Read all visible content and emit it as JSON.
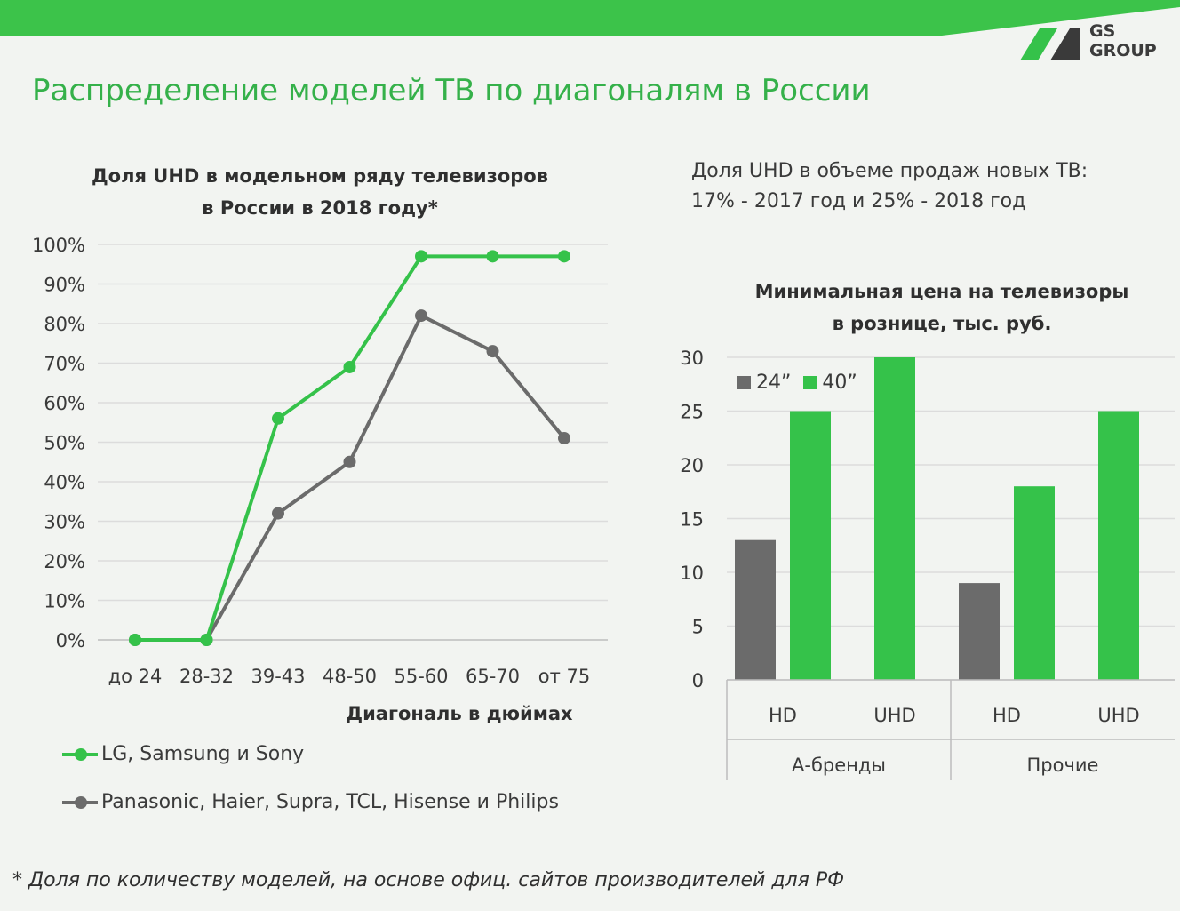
{
  "slide": {
    "title": "Распределение моделей ТВ по диагоналям в России",
    "logo_text": [
      "GS",
      "GROUP"
    ],
    "uhd_note": [
      "Доля UHD в объеме продаж новых ТВ:",
      "17% - 2017 год и 25% - 2018 год"
    ],
    "footnote": "* Доля по количеству моделей, на основе офиц. сайтов производителей для РФ",
    "colors": {
      "green": "#35c24a",
      "gray": "#6b6b6b",
      "title_green": "#35b14a"
    }
  },
  "chart_data": [
    {
      "type": "line",
      "title": [
        "Доля UHD в модельном ряду телевизоров",
        "в России в 2018 году*"
      ],
      "xlabel": "Диагональ в дюймах",
      "ylabel": "",
      "categories": [
        "до 24",
        "28-32",
        "39-43",
        "48-50",
        "55-60",
        "65-70",
        "от 75"
      ],
      "yticks": [
        "0%",
        "10%",
        "20%",
        "30%",
        "40%",
        "50%",
        "60%",
        "70%",
        "80%",
        "90%",
        "100%"
      ],
      "ylim": [
        0,
        100
      ],
      "grid": true,
      "legend_position": "bottom",
      "series": [
        {
          "name": "LG, Samsung и Sony",
          "color": "#35c24a",
          "values": [
            0,
            0,
            56,
            69,
            97,
            97,
            97
          ]
        },
        {
          "name": "Panasonic, Haier, Supra, TCL, Hisense и Philips",
          "color": "#6b6b6b",
          "values": [
            0,
            0,
            32,
            45,
            82,
            73,
            51
          ]
        }
      ]
    },
    {
      "type": "bar",
      "title": [
        "Минимальная цена на телевизоры",
        "в рознице, тыс. руб."
      ],
      "xlabel": "",
      "ylabel": "",
      "groups": [
        "А-бренды",
        "Прочие"
      ],
      "categories": [
        "HD",
        "UHD",
        "HD",
        "UHD"
      ],
      "yticks": [
        "0",
        "5",
        "10",
        "15",
        "20",
        "25",
        "30"
      ],
      "ylim": [
        0,
        30
      ],
      "grid": true,
      "legend_position": "top-left",
      "series": [
        {
          "name": "24”",
          "color": "#6b6b6b",
          "values": [
            13,
            null,
            9,
            null
          ]
        },
        {
          "name": "40”",
          "color": "#35c24a",
          "values": [
            25,
            30,
            18,
            25
          ]
        }
      ]
    }
  ]
}
